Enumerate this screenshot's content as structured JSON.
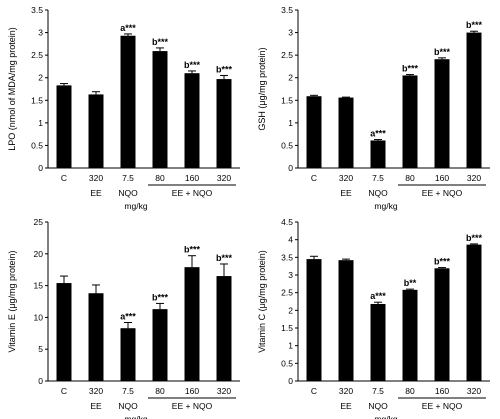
{
  "chart_data": [
    {
      "type": "bar",
      "title": "",
      "xlabel": "mg/kg",
      "ylabel": "LPO (nmol of MDA/mg protein)",
      "ylim": [
        0,
        3.5
      ],
      "yticks": [
        "0",
        "0.5",
        "1",
        "1.5",
        "2",
        "2.5",
        "3",
        "3.5"
      ],
      "categories": [
        "C",
        "320",
        "7.5",
        "80",
        "160",
        "320"
      ],
      "values": [
        1.83,
        1.63,
        2.93,
        2.59,
        2.1,
        1.97
      ],
      "errors": [
        0.04,
        0.06,
        0.04,
        0.07,
        0.05,
        0.08
      ],
      "annotations": [
        "",
        "",
        "a***",
        "b***",
        "b***",
        "b***"
      ],
      "group_labels": [
        "EE",
        "NQO",
        "EE + NQO"
      ],
      "grid": false
    },
    {
      "type": "bar",
      "title": "",
      "xlabel": "mg/kg",
      "ylabel": "GSH (μg/mg protein)",
      "ylim": [
        0,
        3.5
      ],
      "yticks": [
        "0",
        "0.5",
        "1",
        "1.5",
        "2",
        "2.5",
        "3",
        "3.5"
      ],
      "categories": [
        "C",
        "320",
        "7.5",
        "80",
        "160",
        "320"
      ],
      "values": [
        1.59,
        1.56,
        0.61,
        2.05,
        2.41,
        3.0
      ],
      "errors": [
        0.02,
        0.01,
        0.02,
        0.02,
        0.03,
        0.03
      ],
      "annotations": [
        "",
        "",
        "a***",
        "b***",
        "b***",
        "b***"
      ],
      "group_labels": [
        "EE",
        "NQO",
        "EE + NQO"
      ],
      "grid": false
    },
    {
      "type": "bar",
      "title": "",
      "xlabel": "mg/kg",
      "ylabel": "Vitamin E (μg/mg protein)",
      "ylim": [
        0,
        25
      ],
      "yticks": [
        "0",
        "5",
        "10",
        "15",
        "20",
        "25"
      ],
      "categories": [
        "C",
        "320",
        "7.5",
        "80",
        "160",
        "320"
      ],
      "values": [
        15.4,
        13.8,
        8.3,
        11.3,
        17.9,
        16.5
      ],
      "errors": [
        1.1,
        1.3,
        0.9,
        0.9,
        1.8,
        1.9
      ],
      "annotations": [
        "",
        "",
        "a***",
        "b***",
        "b***",
        "b***"
      ],
      "group_labels": [
        "EE",
        "NQO",
        "EE + NQO"
      ],
      "grid": false
    },
    {
      "type": "bar",
      "title": "",
      "xlabel": "mg/kg",
      "ylabel": "Vitamin C (μg/mg protein)",
      "ylim": [
        0,
        4.5
      ],
      "yticks": [
        "0",
        "0.5",
        "1",
        "1.5",
        "2",
        "2.5",
        "3",
        "3.5",
        "4",
        "4.5"
      ],
      "categories": [
        "C",
        "320",
        "7.5",
        "80",
        "160",
        "320"
      ],
      "values": [
        3.45,
        3.42,
        2.18,
        2.58,
        3.19,
        3.86
      ],
      "errors": [
        0.08,
        0.03,
        0.05,
        0.02,
        0.02,
        0.02
      ],
      "annotations": [
        "",
        "",
        "a***",
        "b**",
        "b***",
        "b***"
      ],
      "group_labels": [
        "EE",
        "NQO",
        "EE + NQO"
      ],
      "grid": false
    }
  ]
}
